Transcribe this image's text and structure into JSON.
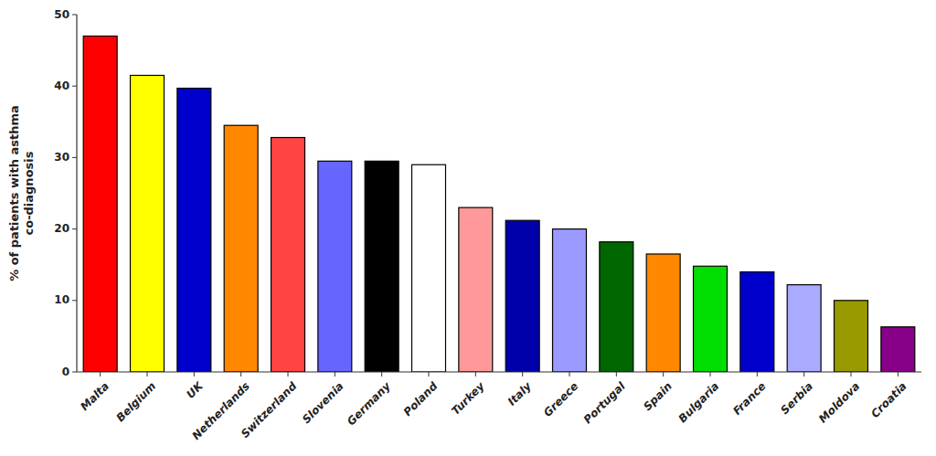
{
  "chart_data": {
    "type": "bar",
    "ylabel": "% of patients with asthma\nco-diagnosis",
    "categories": [
      "Malta",
      "Belgium",
      "UK",
      "Netherlands",
      "Switzerland",
      "Slovenia",
      "Germany",
      "Poland",
      "Turkey",
      "Italy",
      "Greece",
      "Portugal",
      "Spain",
      "Bulgaria",
      "France",
      "Serbia",
      "Moldova",
      "Croatia"
    ],
    "values": [
      47.0,
      41.5,
      39.7,
      34.5,
      32.8,
      29.5,
      29.5,
      29.0,
      23.0,
      21.2,
      20.0,
      18.2,
      16.5,
      14.8,
      14.0,
      12.2,
      10.0,
      6.3
    ],
    "colors": [
      "#ff0000",
      "#ffff00",
      "#0000cc",
      "#ff8800",
      "#ff4444",
      "#6666ff",
      "#000000",
      "#ffffff",
      "#ff9999",
      "#0000aa",
      "#9999ff",
      "#006600",
      "#ff8800",
      "#00dd00",
      "#0000cc",
      "#aaaaff",
      "#999900",
      "#880088"
    ],
    "ylim": [
      0,
      50
    ],
    "yticks": [
      0,
      10,
      20,
      30,
      40,
      50
    ],
    "grid": false
  }
}
